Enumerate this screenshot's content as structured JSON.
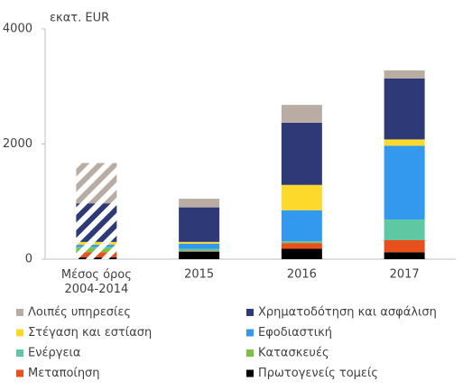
{
  "chart_data": {
    "type": "stacked_bar",
    "y_axis_label": "εκατ. EUR",
    "categories": [
      "Μέσος όρος 2004-2014",
      "2015",
      "2016",
      "2017"
    ],
    "hatched_categories": [
      0
    ],
    "series": [
      {
        "name": "Πρωτογενείς τομείς",
        "color": "#000000",
        "values": [
          30,
          130,
          180,
          120
        ]
      },
      {
        "name": "Μεταποίηση",
        "color": "#e8501e",
        "values": [
          90,
          10,
          100,
          210
        ]
      },
      {
        "name": "Κατασκευές",
        "color": "#7cc242",
        "values": [
          70,
          0,
          10,
          0
        ]
      },
      {
        "name": "Ενέργεια",
        "color": "#5fc7a2",
        "values": [
          20,
          40,
          20,
          360
        ]
      },
      {
        "name": "Εφοδιαστική",
        "color": "#3399ee",
        "values": [
          40,
          90,
          540,
          1280
        ]
      },
      {
        "name": "Στέγαση και εστίαση",
        "color": "#fdd92c",
        "values": [
          50,
          30,
          440,
          110
        ]
      },
      {
        "name": "Χρηματοδότηση και ασφάλιση",
        "color": "#2e3a78",
        "values": [
          670,
          600,
          1080,
          1060
        ]
      },
      {
        "name": "Λοιπές υπηρεσίες",
        "color": "#b9aca2",
        "values": [
          700,
          150,
          310,
          140
        ]
      }
    ],
    "ylim": [
      0,
      4000
    ],
    "yticks": [
      0,
      2000,
      4000
    ],
    "grid": false
  }
}
